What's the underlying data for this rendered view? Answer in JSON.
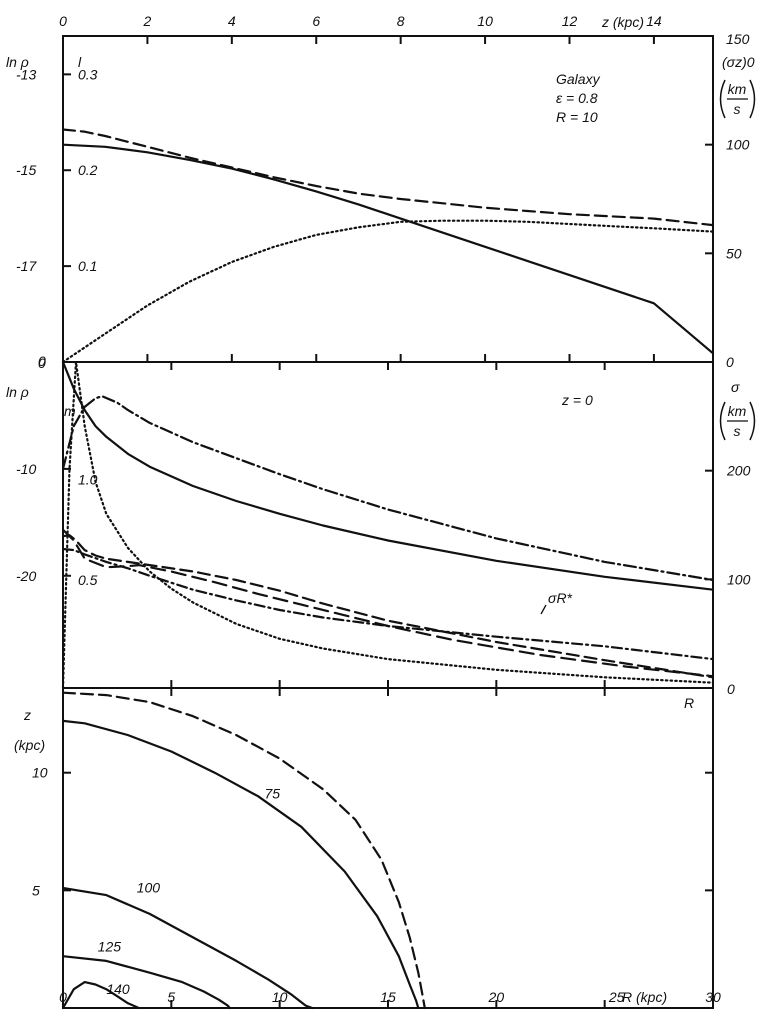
{
  "chart_data": [
    {
      "panel": "top",
      "type": "line",
      "annotation": [
        "Galaxy",
        "ε = 0.8",
        "R = 10"
      ],
      "top_axis": {
        "ticks": [
          "0",
          "2",
          "4",
          "6",
          "8",
          "10",
          "12",
          "14"
        ],
        "label": "z (kpc)",
        "range": [
          0,
          15.4
        ]
      },
      "left_axis_lnrho": {
        "ticks": [
          "-13",
          "-15",
          "-17"
        ],
        "label": "ln ρ",
        "range": [
          -19,
          -12.2
        ]
      },
      "left_axis_l": {
        "ticks": [
          "0.3",
          "0.2",
          "0.1",
          "0"
        ],
        "label": "l",
        "range": [
          0,
          0.34
        ]
      },
      "right_axis": {
        "ticks": [
          "150",
          "100",
          "50",
          "0"
        ],
        "label_main": "(σz)0",
        "unit_num": "km",
        "unit_den": "s",
        "range": [
          0,
          150
        ]
      },
      "series": [
        {
          "style": "solid",
          "x": [
            0,
            1,
            2,
            3,
            4,
            5,
            6,
            7,
            8,
            9,
            10,
            11,
            12,
            13,
            14,
            15.4
          ],
          "y": [
            100,
            99,
            96.5,
            93,
            89,
            84,
            78.5,
            72.5,
            66,
            59.5,
            53,
            46.5,
            40,
            33.5,
            27,
            4
          ]
        },
        {
          "style": "dashed",
          "x": [
            0,
            0.5,
            1,
            2,
            3,
            4,
            5,
            6,
            7,
            8,
            9,
            10,
            11,
            12,
            13,
            14,
            15.4
          ],
          "y": [
            107,
            106,
            104,
            99,
            94,
            89.5,
            85,
            81,
            77.5,
            75,
            73,
            71,
            69.5,
            68,
            67,
            66,
            63
          ]
        },
        {
          "style": "dotted",
          "x": [
            0,
            1,
            2,
            3,
            4,
            5,
            6,
            7,
            8,
            9,
            10,
            11,
            12,
            13,
            14,
            15.4
          ],
          "y": [
            0,
            13,
            26,
            37,
            46,
            53,
            58.5,
            62,
            64.5,
            65,
            65,
            64.5,
            63.5,
            62.5,
            61.5,
            60
          ]
        }
      ]
    },
    {
      "panel": "middle",
      "type": "line",
      "annotation": [
        "z = 0"
      ],
      "left_axis_lnrho": {
        "ticks": [
          "0",
          "-10",
          "-20"
        ],
        "label": "ln ρ",
        "range": [
          -30.5,
          0
        ]
      },
      "left_axis_m": {
        "ticks": [
          "1.0",
          "0.5"
        ],
        "label": "m"
      },
      "right_axis": {
        "ticks": [
          "200",
          "100",
          "0"
        ],
        "label_main": "σ",
        "unit_num": "km",
        "unit_den": "s",
        "range": [
          0,
          300
        ]
      },
      "series_label": "σR*",
      "series": [
        {
          "style": "solid",
          "x": [
            0,
            0.5,
            1,
            1.5,
            2,
            3,
            4,
            6,
            8,
            10,
            12,
            15,
            20,
            25,
            30
          ],
          "y": [
            0,
            -2.5,
            -4.5,
            -6,
            -7,
            -8.6,
            -9.8,
            -11.6,
            -13,
            -14.2,
            -15.3,
            -16.7,
            -18.6,
            -20.1,
            -21.3
          ]
        },
        {
          "style": "dashdot",
          "x": [
            0,
            0.5,
            1,
            1.5,
            1.8,
            2.5,
            3,
            4,
            6,
            8,
            10,
            12,
            15,
            20,
            25,
            30
          ],
          "y": [
            -10,
            -6,
            -4.2,
            -3.4,
            -3.2,
            -3.8,
            -4.5,
            -5.7,
            -7.5,
            -9,
            -10.5,
            -11.9,
            -13.8,
            -16.5,
            -18.7,
            -20.4
          ]
        },
        {
          "style": "dashed",
          "x": [
            0,
            0.3,
            0.6,
            1,
            1.5,
            2,
            3,
            4,
            6,
            8,
            10,
            12,
            15,
            20,
            25,
            30
          ],
          "y": [
            -16.3,
            -16.2,
            -16.7,
            -17.6,
            -18.1,
            -18.4,
            -18.7,
            -19,
            -19.6,
            -20.4,
            -21.4,
            -22.6,
            -24.2,
            -26.2,
            -27.9,
            -29.5
          ]
        },
        {
          "style": "dashdot2",
          "x": [
            0,
            0.5,
            1,
            2,
            3,
            4,
            6,
            8,
            10,
            12,
            15,
            20,
            25,
            30
          ],
          "y": [
            -17.5,
            -17.6,
            -18,
            -18.7,
            -19.3,
            -20,
            -21.3,
            -22.3,
            -23.2,
            -23.9,
            -24.7,
            -25.7,
            -26.6,
            -27.8
          ]
        },
        {
          "style": "longdash",
          "x": [
            0,
            0.5,
            1,
            2,
            3,
            3.5,
            5,
            7,
            9,
            11,
            13,
            15,
            18,
            22,
            26,
            30
          ],
          "y": [
            -15.7,
            -16.7,
            -18.4,
            -19.2,
            -19.1,
            -19,
            -19.6,
            -20.6,
            -21.7,
            -22.7,
            -23.7,
            -24.7,
            -26,
            -27.4,
            -28.5,
            -29.4
          ]
        },
        {
          "style": "dotted",
          "x": [
            0,
            0.3,
            0.6,
            1,
            1.5,
            2,
            3,
            4,
            5,
            6,
            8,
            10,
            12,
            15,
            20,
            25,
            30
          ],
          "y": [
            -30.5,
            -10,
            0,
            -6,
            -11.2,
            -14.2,
            -17.4,
            -19.6,
            -21.2,
            -22.5,
            -24.5,
            -25.9,
            -26.8,
            -27.8,
            -28.8,
            -29.5,
            -30
          ]
        }
      ]
    },
    {
      "panel": "bottom",
      "type": "contour",
      "x_axis": {
        "ticks": [
          "0",
          "5",
          "10",
          "15",
          "20",
          "25",
          "30"
        ],
        "label": "R (kpc)",
        "range": [
          0,
          30
        ]
      },
      "y_axis": {
        "ticks": [
          "5",
          "10"
        ],
        "label_main": "z",
        "unit": "(kpc)",
        "range": [
          0,
          13.6
        ]
      },
      "corner_label": "R",
      "contours": [
        {
          "label": "140",
          "style": "solid",
          "R": [
            0,
            0.5,
            1,
            1.5,
            2,
            2.5,
            3,
            3.5
          ],
          "z": [
            0,
            0.8,
            1.1,
            1,
            0.8,
            0.5,
            0.2,
            0
          ]
        },
        {
          "label": "125",
          "style": "solid",
          "R": [
            0,
            2,
            4,
            5.5,
            6.5,
            7.2,
            7.6,
            7.7
          ],
          "z": [
            2.2,
            2,
            1.5,
            1.1,
            0.7,
            0.35,
            0.1,
            0
          ]
        },
        {
          "label": "100",
          "style": "solid",
          "R": [
            0,
            2,
            4,
            6,
            8,
            9.5,
            10.5,
            11.2,
            11.5
          ],
          "z": [
            5.1,
            4.8,
            4,
            3,
            2,
            1.2,
            0.6,
            0.1,
            0
          ]
        },
        {
          "label": "75",
          "style": "solid",
          "R": [
            0,
            1,
            3,
            5,
            7,
            9,
            11,
            13,
            14.5,
            15.5,
            16,
            16.3,
            16.4
          ],
          "z": [
            12.2,
            12.1,
            11.6,
            10.9,
            10,
            9,
            7.7,
            5.8,
            3.9,
            2.2,
            1,
            0.3,
            0
          ]
        },
        {
          "label": "",
          "style": "dashed",
          "R": [
            0,
            2,
            4,
            6,
            8,
            10,
            12,
            13.5,
            14.7,
            15.5,
            16,
            16.4,
            16.6,
            16.7
          ],
          "z": [
            13.4,
            13.3,
            13,
            12.4,
            11.6,
            10.6,
            9.3,
            8,
            6.3,
            4.5,
            3,
            1.5,
            0.5,
            0
          ]
        }
      ]
    }
  ]
}
